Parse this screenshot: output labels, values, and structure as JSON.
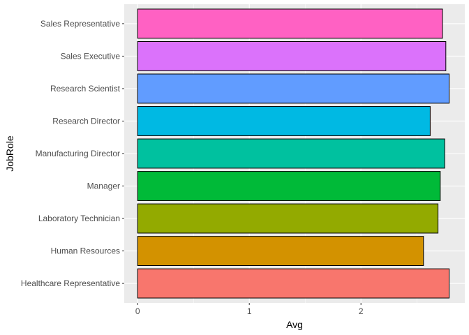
{
  "chart_data": {
    "type": "bar",
    "orientation": "horizontal",
    "xlabel": "Avg",
    "ylabel": "JobRole",
    "xlim": [
      -0.12,
      2.93
    ],
    "xticks": [
      0,
      1,
      2
    ],
    "xtick_labels": [
      "0",
      "1",
      "2"
    ],
    "grid": true,
    "legend": "none",
    "categories": [
      "Healthcare Representative",
      "Human Resources",
      "Laboratory Technician",
      "Manager",
      "Manufacturing Director",
      "Research Director",
      "Research Scientist",
      "Sales Executive",
      "Sales Representative"
    ],
    "values": [
      2.79,
      2.56,
      2.69,
      2.71,
      2.75,
      2.62,
      2.79,
      2.76,
      2.73
    ],
    "colors": [
      "#F8766D",
      "#D39200",
      "#93AA00",
      "#00BA38",
      "#00C19F",
      "#00B9E3",
      "#619CFF",
      "#DB72FB",
      "#FF61C3"
    ]
  }
}
